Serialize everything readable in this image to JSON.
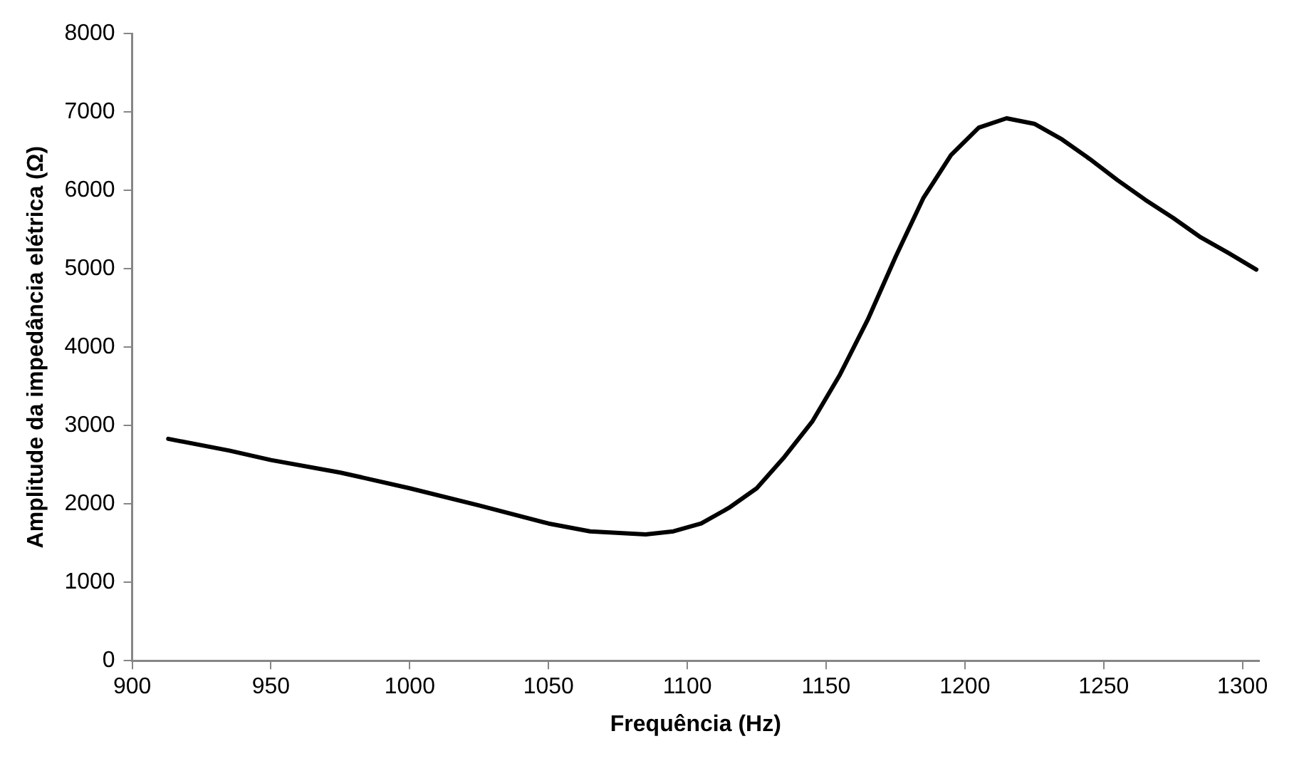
{
  "chart_data": {
    "type": "line",
    "xlabel": "Frequência (Hz)",
    "ylabel": "Amplitude da impedância elétrica (Ω)",
    "xlim": [
      900,
      1306
    ],
    "xticks": [
      900,
      950,
      1000,
      1050,
      1100,
      1150,
      1200,
      1250,
      1300
    ],
    "ylim": [
      0,
      8000
    ],
    "yticks": [
      0,
      1000,
      2000,
      3000,
      4000,
      5000,
      6000,
      7000,
      8000
    ],
    "grid": false,
    "legend": false,
    "marker": "none",
    "line_style": "solid",
    "series": [
      {
        "color": "#000000",
        "x": [
          913,
          935,
          950,
          975,
          1000,
          1025,
          1050,
          1065,
          1085,
          1095,
          1105,
          1115,
          1125,
          1135,
          1145,
          1155,
          1165,
          1175,
          1185,
          1195,
          1205,
          1215,
          1225,
          1235,
          1245,
          1255,
          1265,
          1275,
          1285,
          1295,
          1305
        ],
        "values": [
          2830,
          2680,
          2560,
          2400,
          2200,
          1980,
          1750,
          1650,
          1610,
          1650,
          1750,
          1950,
          2200,
          2600,
          3050,
          3650,
          4350,
          5150,
          5900,
          6450,
          6800,
          6920,
          6850,
          6650,
          6400,
          6130,
          5880,
          5650,
          5400,
          5200,
          4990
        ]
      }
    ]
  }
}
